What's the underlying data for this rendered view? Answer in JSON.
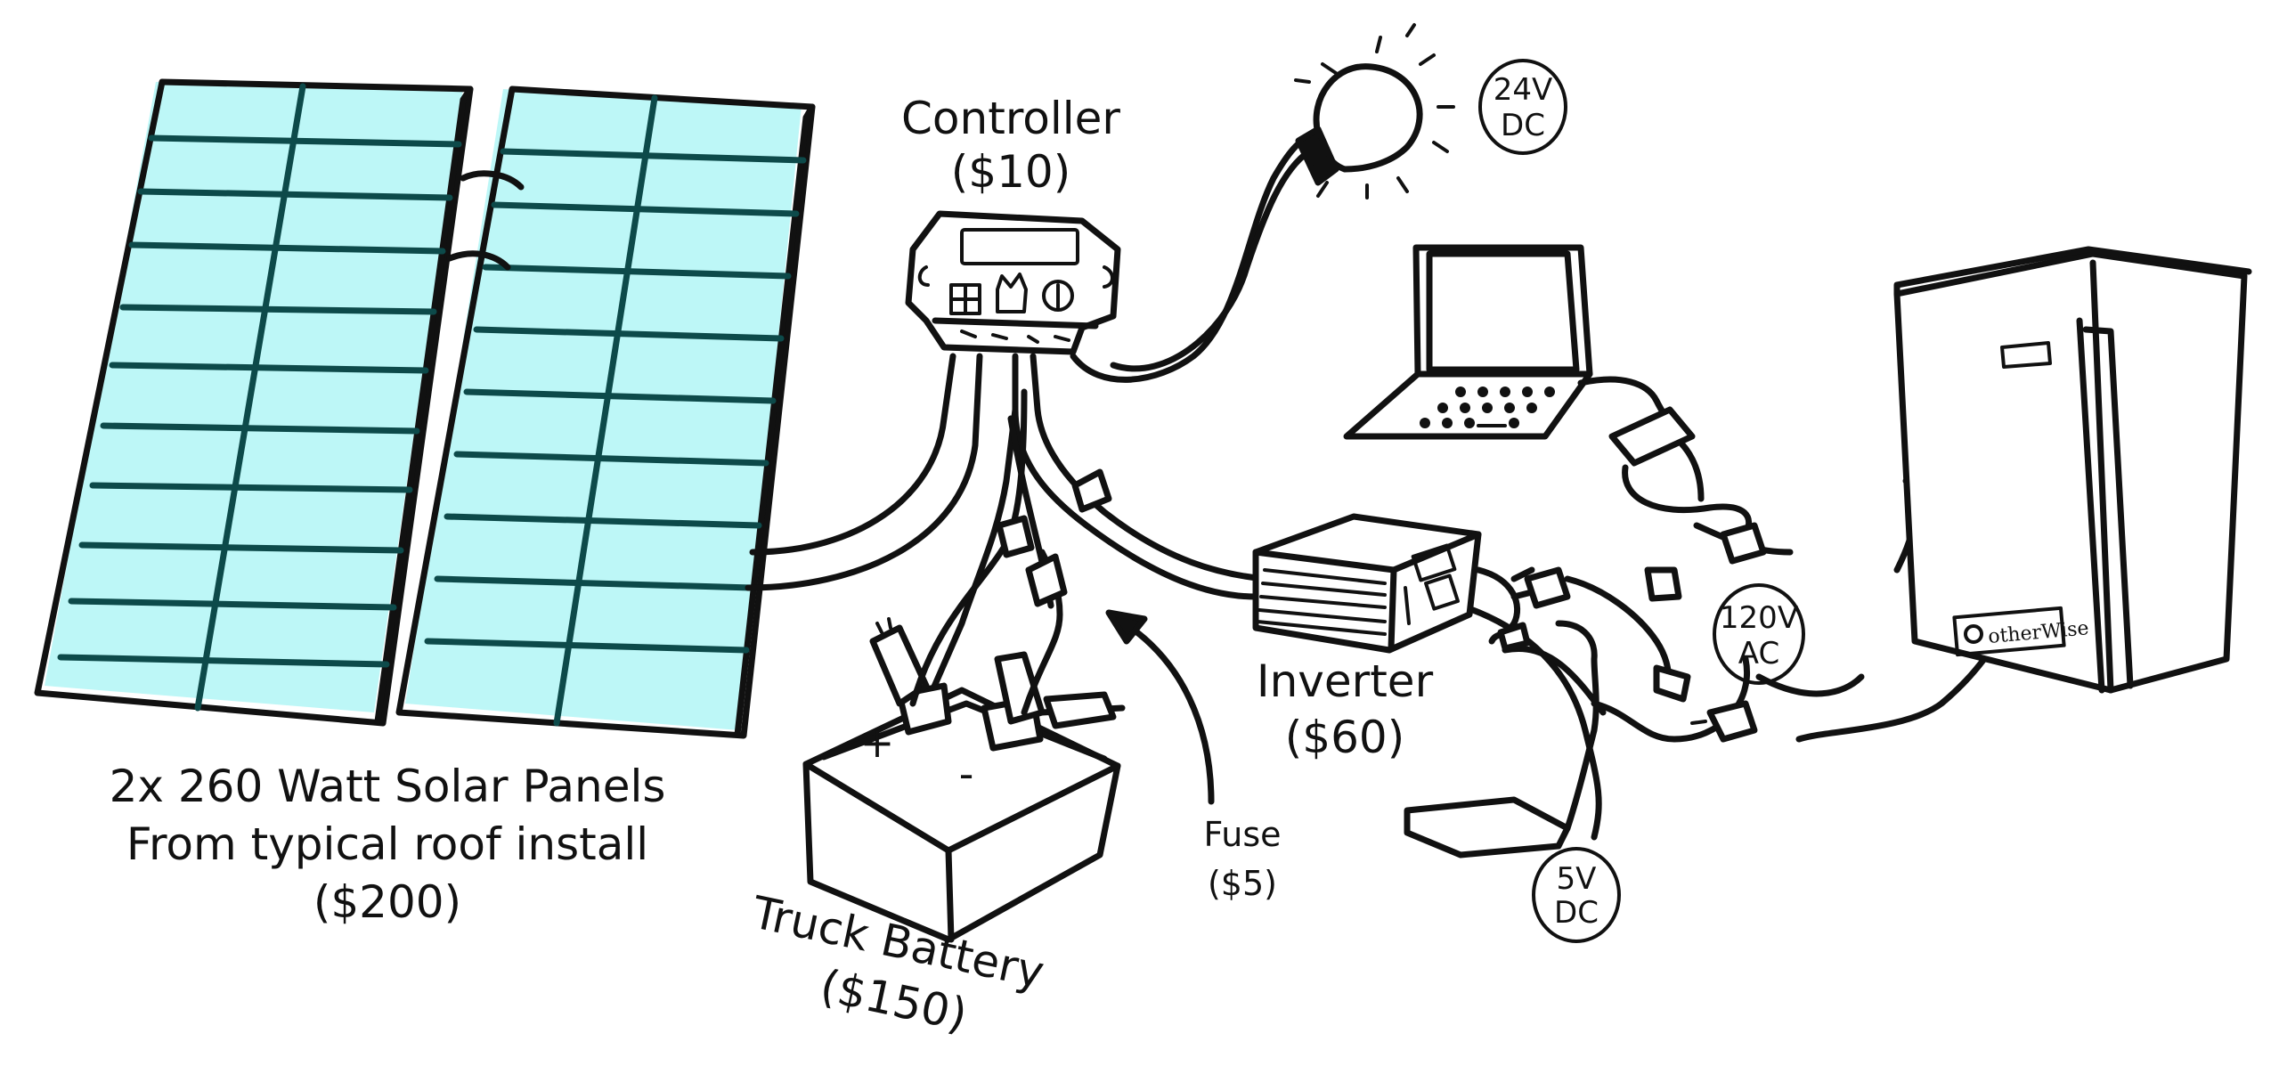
{
  "solar_panels": {
    "line1": "2x 260 Watt Solar Panels",
    "line2": "From typical roof install",
    "price": "($200)"
  },
  "controller": {
    "name": "Controller",
    "price": "($10)"
  },
  "light_badge": {
    "line1": "24V",
    "line2": "DC"
  },
  "inverter": {
    "name": "Inverter",
    "price": "($60)"
  },
  "ac_badge": {
    "line1": "120V",
    "line2": "AC"
  },
  "usb_badge": {
    "line1": "5V",
    "line2": "DC"
  },
  "fuse": {
    "name": "Fuse",
    "price": "($5)"
  },
  "battery": {
    "name": "Truck Battery",
    "price": "($150)",
    "plus": "+",
    "minus": "-"
  },
  "fridge": {
    "brand": "otherWise"
  },
  "colors": {
    "panel_fill": "#bdf7f7",
    "panel_grid": "#0d4a4a",
    "ink": "#111111"
  }
}
